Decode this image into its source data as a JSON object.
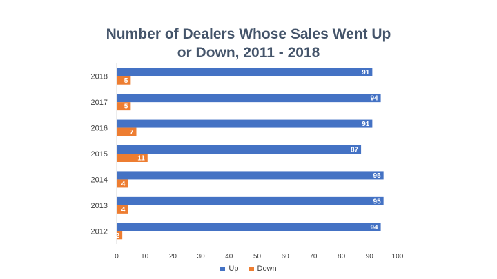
{
  "chart_data": {
    "type": "bar",
    "orientation": "horizontal",
    "title_lines": [
      "Number of Dealers Whose Sales Went Up",
      "or Down, 2011 - 2018"
    ],
    "categories": [
      "2018",
      "2017",
      "2016",
      "2015",
      "2014",
      "2013",
      "2012"
    ],
    "series": [
      {
        "name": "Up",
        "color": "#4472c4",
        "values": [
          91,
          94,
          91,
          87,
          95,
          95,
          94
        ]
      },
      {
        "name": "Down",
        "color": "#ed7d31",
        "values": [
          5,
          5,
          7,
          11,
          4,
          4,
          2
        ]
      }
    ],
    "xlim": [
      0,
      100
    ],
    "xticks": [
      0,
      10,
      20,
      30,
      40,
      50,
      60,
      70,
      80,
      90,
      100
    ],
    "grid": false,
    "legend_position": "bottom",
    "data_labels": true
  }
}
